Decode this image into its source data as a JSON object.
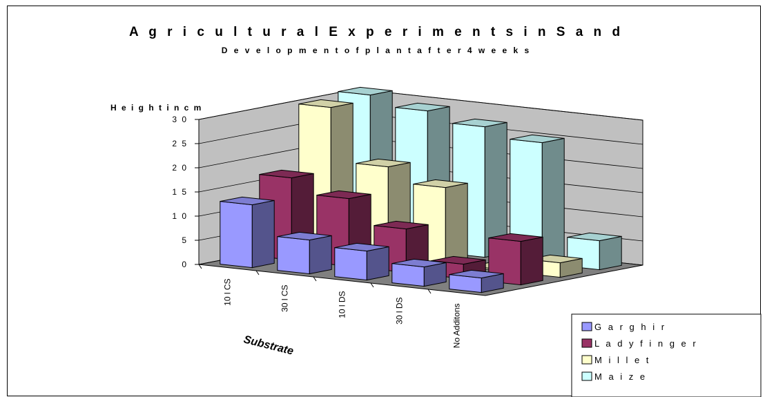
{
  "chart_data": {
    "type": "bar",
    "title": "A g r i c u l t u r a l  E x p e r i m e n t s  i n  S a n d",
    "subtitle": "D e v e l o p m e n t  o f  p l a n t  a f t e r  4  w e e k s",
    "ylabel": "H e i g h t  i n  c m",
    "xlabel": "Substrate",
    "ylim": [
      0,
      30
    ],
    "yticks": [
      "0",
      "5",
      "1 0",
      "1 5",
      "2 0",
      "2 5",
      "3 0"
    ],
    "categories": [
      "10 l CS",
      "30 l CS",
      "10 l DS",
      "30 l DS",
      "No Additons"
    ],
    "series": [
      {
        "name": "G a r g h i r",
        "values": [
          13,
          7,
          6,
          4,
          3
        ],
        "color": "#9999ff"
      },
      {
        "name": "L a d y f i n g e r",
        "values": [
          17,
          14,
          9,
          3,
          9
        ],
        "color": "#993366"
      },
      {
        "name": "M i l l e t",
        "values": [
          30,
          19,
          16,
          0.3,
          3
        ],
        "color": "#ffffcc"
      },
      {
        "name": "M a i z e",
        "values": [
          31,
          29,
          27,
          25,
          6
        ],
        "color": "#ccffff"
      }
    ],
    "wall_color": "#c0c0c0",
    "floor_color": "#808080",
    "grid": true,
    "legend_position": "bottom-right"
  }
}
